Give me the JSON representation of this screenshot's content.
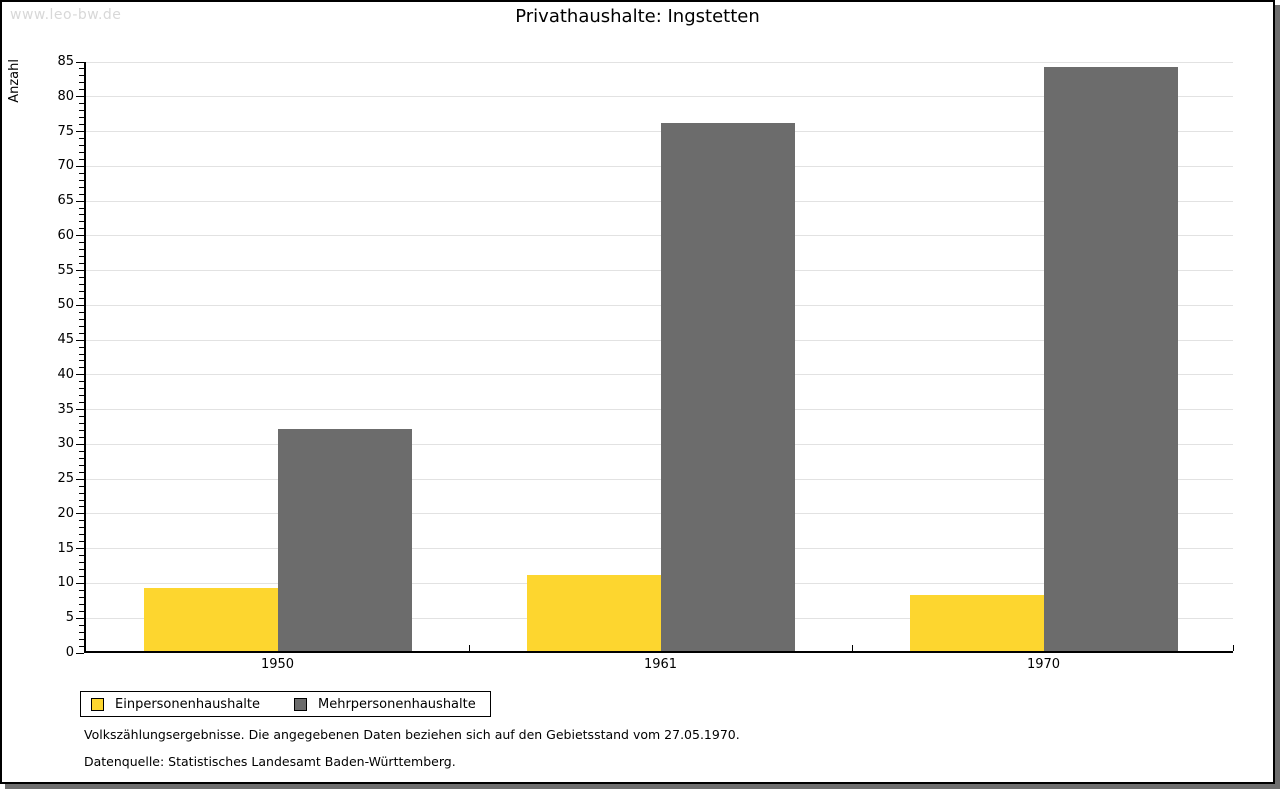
{
  "watermark": "www.leo-bw.de",
  "title": "Privathaushalte: Ingstetten",
  "chart_data": {
    "type": "bar",
    "title": "Privathaushalte: Ingstetten",
    "categories": [
      "1950",
      "1961",
      "1970"
    ],
    "series": [
      {
        "name": "Einpersonenhaushalte",
        "color": "#fdd62f",
        "values": [
          9,
          11,
          8
        ]
      },
      {
        "name": "Mehrpersonenhaushalte",
        "color": "#6c6c6c",
        "values": [
          32,
          76,
          84
        ]
      }
    ],
    "xlabel": "",
    "ylabel": "Anzahl",
    "ylim": [
      0,
      85
    ],
    "ytick_step": 5,
    "minor_tick_step": 1,
    "grid": true,
    "legend_position": "bottom-left"
  },
  "footnotes": [
    "Volkszählungsergebnisse. Die angegebenen Daten beziehen sich auf den Gebietsstand vom 27.05.1970.",
    "Datenquelle: Statistisches Landesamt Baden-Württemberg."
  ],
  "colors": {
    "series1": "#fdd62f",
    "series2": "#6c6c6c",
    "gridline": "#e2e2e2",
    "watermark": "#d8d8d8",
    "page_shadow": "#6e6e6e",
    "border": "#000000"
  }
}
